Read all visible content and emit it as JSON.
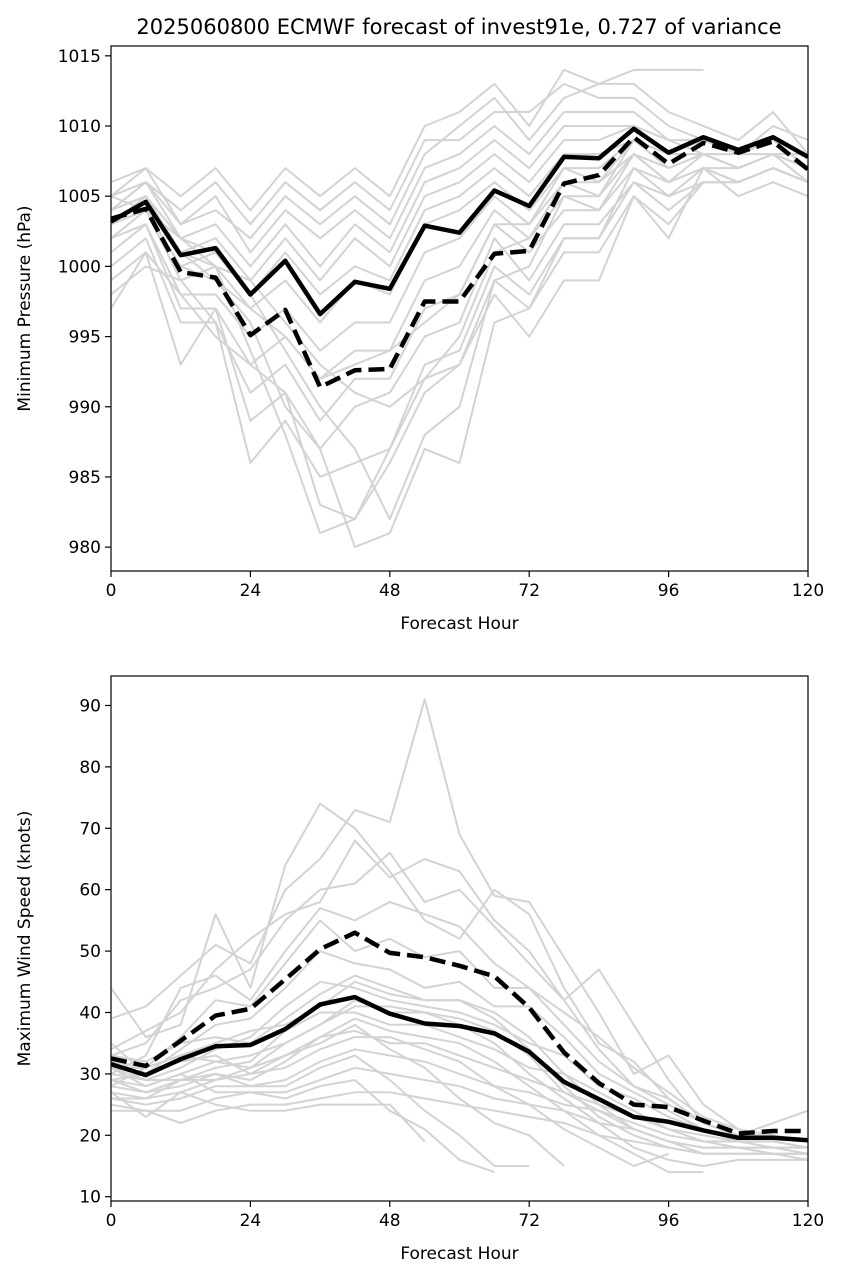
{
  "figure": {
    "title": "2025060800 ECMWF forecast of invest91e, 0.727 of variance"
  },
  "colors": {
    "ensemble": "#d3d3d3",
    "mean": "#000000",
    "background": "#ffffff"
  },
  "chart_data": [
    {
      "type": "line",
      "title": "2025060800 ECMWF forecast of invest91e, 0.727 of variance",
      "xlabel": "Forecast Hour",
      "ylabel": "Minimum Pressure (hPa)",
      "xlim": [
        0,
        120
      ],
      "ylim": [
        978.3,
        1015.7
      ],
      "xticks": [
        0,
        24,
        48,
        72,
        96,
        120
      ],
      "yticks": [
        980,
        985,
        990,
        995,
        1000,
        1005,
        1010,
        1015
      ],
      "grid": false,
      "x": [
        0,
        6,
        12,
        18,
        24,
        30,
        36,
        42,
        48,
        54,
        60,
        66,
        72,
        78,
        84,
        90,
        96,
        102,
        108,
        114,
        120
      ],
      "series": [
        {
          "style": "solid",
          "values": [
            1003.2,
            1004.6,
            1000.8,
            1001.3,
            998.0,
            1000.4,
            996.6,
            998.9,
            998.4,
            1002.9,
            1002.4,
            1005.4,
            1004.3,
            1007.8,
            1007.7,
            1009.8,
            1008.1,
            1009.2,
            1008.3,
            1009.2,
            1007.8
          ]
        },
        {
          "style": "dashed",
          "values": [
            1003.4,
            1004.1,
            999.6,
            999.2,
            995.1,
            996.9,
            991.4,
            992.6,
            992.7,
            997.5,
            997.5,
            1000.9,
            1001.1,
            1005.9,
            1006.5,
            1009.2,
            1007.3,
            1008.8,
            1008.1,
            1008.9,
            1006.9
          ]
        }
      ],
      "ensemble": [
        [
          1006,
          1007,
          1005,
          1007,
          1004,
          1007,
          1005,
          1007,
          1005,
          1010,
          1011,
          1013,
          1010,
          1014,
          1013,
          1013,
          1011,
          1010,
          1009,
          1011,
          1008
        ],
        [
          1005,
          1006,
          1004,
          1006,
          1003,
          1006,
          1004,
          1006,
          1004,
          1009,
          1009,
          1011,
          1011,
          1013,
          1012,
          1012,
          1010,
          1009,
          1008,
          1010,
          1009
        ],
        [
          1005,
          1007,
          1003,
          1004,
          1002,
          1005,
          1003,
          1005,
          1003,
          1008,
          1010,
          1012,
          1009,
          1012,
          1013,
          1014,
          1014,
          1014,
          null,
          null,
          null
        ],
        [
          1004,
          1006,
          1003,
          1005,
          1001,
          1004,
          1002,
          1004,
          1002,
          1007,
          1008,
          1010,
          1008,
          1011,
          1011,
          1011,
          1009,
          1008,
          1008,
          1009,
          1008
        ],
        [
          1004,
          1005,
          1002,
          1003,
          1000,
          1003,
          1000,
          1003,
          1001,
          1006,
          1007,
          1009,
          1007,
          1010,
          1010,
          1010,
          1009,
          1009,
          1008,
          1009,
          1007
        ],
        [
          1003,
          1005,
          1001,
          1002,
          999,
          1002,
          999,
          1002,
          1000,
          1005,
          1006,
          1008,
          1006,
          1009,
          1009,
          1010,
          1008,
          1008,
          1008,
          1008,
          1008
        ],
        [
          1003,
          1004,
          1000,
          1001,
          998,
          1001,
          998,
          1000,
          999,
          1004,
          1005,
          1007,
          1005,
          1008,
          1008,
          1009,
          1008,
          1008,
          1007,
          1008,
          1007
        ],
        [
          1002,
          1004,
          999,
          1000,
          997,
          999,
          996,
          999,
          998,
          1003,
          1004,
          1006,
          1004,
          1007,
          1007,
          1009,
          1007,
          1008,
          1007,
          1008,
          1007
        ],
        [
          1002,
          1003,
          998,
          998,
          995,
          997,
          994,
          996,
          996,
          1001,
          1002,
          1005,
          1003,
          1006,
          1006,
          1008,
          1006,
          1008,
          1007,
          1008,
          1006
        ],
        [
          1001,
          1003,
          997,
          997,
          993,
          995,
          992,
          994,
          994,
          999,
          1000,
          1004,
          1002,
          1005,
          1005,
          1008,
          1006,
          1007,
          1007,
          1008,
          1006
        ],
        [
          1000,
          1002,
          996,
          996,
          991,
          993,
          989,
          992,
          992,
          997,
          998,
          1003,
          1001,
          1004,
          1004,
          1007,
          1005,
          1007,
          1006,
          1007,
          1006
        ],
        [
          999,
          1001,
          993,
          997,
          989,
          991,
          987,
          990,
          991,
          995,
          996,
          1002,
          999,
          1003,
          1003,
          1006,
          1005,
          1006,
          1006,
          1007,
          1006
        ],
        [
          998,
          1000,
          999,
          996,
          986,
          989,
          985,
          986,
          987,
          993,
          994,
          1000,
          998,
          1002,
          1002,
          1006,
          1004,
          1006,
          1006,
          1007,
          1006
        ],
        [
          997,
          1001,
          998,
          995,
          993,
          991,
          983,
          982,
          987,
          992,
          993,
          999,
          997,
          1001,
          1001,
          1005,
          1002,
          1007,
          1005,
          1006,
          1005
        ],
        [
          1004,
          1005,
          1001,
          1000,
          994,
          988,
          981,
          982,
          986,
          991,
          993,
          998,
          995,
          999,
          999,
          1005,
          1003,
          1006,
          1006,
          1007,
          1006
        ],
        [
          1003,
          1004,
          1000,
          999,
          996,
          990,
          987,
          980,
          981,
          987,
          986,
          996,
          997,
          1002,
          1002,
          1007,
          1006,
          1007,
          1006,
          1007,
          1006
        ],
        [
          1005,
          1004,
          1002,
          1001,
          998,
          994,
          990,
          987,
          982,
          988,
          990,
          999,
          1000,
          1005,
          1004,
          1008,
          1007,
          1008,
          1007,
          1008,
          1007
        ],
        [
          1004,
          1006,
          1002,
          1000,
          999,
          996,
          993,
          991,
          990,
          992,
          995,
          1001,
          1002,
          1006,
          1005,
          1009,
          1008,
          1009,
          1008,
          1009,
          1007
        ],
        [
          1003,
          1005,
          1001,
          999,
          997,
          995,
          992,
          993,
          994,
          996,
          998,
          1003,
          1003,
          1007,
          1006,
          1009,
          1008,
          1009,
          1008,
          1009,
          1008
        ]
      ]
    },
    {
      "type": "line",
      "xlabel": "Forecast Hour",
      "ylabel": "Maximum Wind Speed (knots)",
      "xlim": [
        0,
        120
      ],
      "ylim": [
        9.3,
        94.8
      ],
      "xticks": [
        0,
        24,
        48,
        72,
        96,
        120
      ],
      "yticks": [
        10,
        20,
        30,
        40,
        50,
        60,
        70,
        80,
        90
      ],
      "grid": false,
      "x": [
        0,
        6,
        12,
        18,
        24,
        30,
        36,
        42,
        48,
        54,
        60,
        66,
        72,
        78,
        84,
        90,
        96,
        102,
        108,
        114,
        120
      ],
      "series": [
        {
          "style": "solid",
          "values": [
            31.6,
            29.8,
            32.4,
            34.5,
            34.7,
            37.3,
            41.3,
            42.5,
            39.8,
            38.2,
            37.8,
            36.6,
            33.6,
            28.7,
            25.9,
            23.0,
            22.2,
            20.8,
            19.6,
            19.6,
            19.2
          ]
        },
        {
          "style": "dashed",
          "values": [
            32.5,
            31.3,
            35.4,
            39.5,
            40.6,
            45.4,
            50.3,
            53.0,
            49.7,
            49.0,
            47.6,
            45.9,
            40.8,
            33.5,
            28.5,
            25.0,
            24.6,
            22.4,
            20.3,
            20.7,
            20.7
          ]
        }
      ],
      "ensemble": [
        [
          44,
          36,
          38,
          56,
          44,
          64,
          74,
          70,
          63,
          55,
          52,
          60,
          56,
          44,
          35,
          32,
          26,
          22,
          20,
          22,
          24
        ],
        [
          39,
          41,
          46,
          51,
          48,
          60,
          65,
          73,
          71,
          91,
          69,
          59,
          58,
          49,
          40,
          30,
          33,
          25,
          21,
          20,
          19
        ],
        [
          34,
          37,
          40,
          47,
          52,
          56,
          58,
          68,
          62,
          65,
          63,
          55,
          50,
          42,
          34,
          28,
          26,
          22,
          20,
          20,
          19
        ],
        [
          33,
          35,
          42,
          44,
          47,
          55,
          60,
          61,
          66,
          58,
          60,
          54,
          48,
          42,
          47,
          38,
          29,
          22,
          20,
          20,
          19
        ],
        [
          30,
          33,
          44,
          46,
          42,
          50,
          57,
          55,
          58,
          56,
          54,
          48,
          44,
          40,
          36,
          31,
          27,
          23,
          21,
          20,
          19
        ],
        [
          28,
          31,
          36,
          42,
          41,
          48,
          55,
          50,
          52,
          49,
          50,
          44,
          44,
          38,
          32,
          28,
          25,
          22,
          20,
          20,
          19
        ],
        [
          35,
          30,
          34,
          38,
          39,
          44,
          50,
          48,
          47,
          44,
          45,
          41,
          41,
          36,
          30,
          27,
          24,
          21,
          20,
          20,
          19
        ],
        [
          31,
          29,
          31,
          34,
          36,
          41,
          45,
          44,
          42,
          41,
          40,
          38,
          35,
          33,
          28,
          26,
          23,
          21,
          19,
          19,
          18
        ],
        [
          29,
          27,
          29,
          31,
          32,
          37,
          40,
          40,
          38,
          38,
          36,
          34,
          31,
          30,
          27,
          24,
          21,
          20,
          19,
          19,
          18
        ],
        [
          27,
          26,
          27,
          29,
          30,
          33,
          36,
          37,
          35,
          35,
          33,
          31,
          29,
          27,
          25,
          23,
          21,
          19,
          19,
          18,
          18
        ],
        [
          26,
          25,
          26,
          28,
          28,
          29,
          32,
          34,
          33,
          32,
          30,
          28,
          27,
          25,
          24,
          22,
          20,
          19,
          18,
          18,
          17
        ],
        [
          25,
          24,
          24,
          26,
          27,
          27,
          29,
          31,
          30,
          29,
          28,
          26,
          25,
          24,
          22,
          21,
          19,
          18,
          18,
          17,
          17
        ],
        [
          24,
          24,
          22,
          24,
          25,
          25,
          26,
          27,
          27,
          26,
          25,
          24,
          23,
          22,
          20,
          19,
          18,
          17,
          17,
          17,
          16
        ],
        [
          27,
          23,
          27,
          25,
          24,
          24,
          25,
          25,
          25,
          19,
          null,
          null,
          null,
          null,
          null,
          null,
          null,
          null,
          null,
          null,
          null
        ],
        [
          31,
          28,
          30,
          27,
          27,
          26,
          28,
          29,
          24,
          21,
          16,
          14,
          null,
          null,
          null,
          null,
          null,
          null,
          null,
          null,
          null
        ],
        [
          30,
          29,
          29,
          30,
          28,
          28,
          31,
          33,
          29,
          24,
          20,
          15,
          15,
          null,
          null,
          null,
          null,
          null,
          null,
          null,
          null
        ],
        [
          32,
          31,
          33,
          32,
          31,
          33,
          35,
          38,
          34,
          31,
          26,
          22,
          20,
          15,
          null,
          null,
          null,
          null,
          null,
          null,
          null
        ],
        [
          29,
          30,
          32,
          33,
          30,
          31,
          34,
          36,
          36,
          34,
          32,
          28,
          25,
          21,
          18,
          15,
          17,
          null,
          null,
          null,
          null
        ],
        [
          28,
          27,
          28,
          30,
          29,
          32,
          36,
          39,
          37,
          36,
          35,
          32,
          28,
          24,
          20,
          17,
          14,
          14,
          null,
          null,
          null
        ],
        [
          26,
          26,
          29,
          29,
          31,
          35,
          38,
          42,
          40,
          40,
          38,
          35,
          30,
          26,
          22,
          18,
          16,
          15,
          16,
          16,
          16
        ],
        [
          33,
          32,
          35,
          36,
          35,
          39,
          43,
          46,
          44,
          42,
          42,
          39,
          34,
          28,
          23,
          20,
          18,
          17,
          17,
          17,
          17
        ],
        [
          29,
          28,
          30,
          32,
          33,
          35,
          38,
          41,
          41,
          40,
          39,
          37,
          33,
          27,
          24,
          21,
          19,
          17,
          17,
          17,
          17
        ],
        [
          31,
          31,
          33,
          35,
          37,
          38,
          41,
          45,
          43,
          42,
          42,
          40,
          36,
          30,
          25,
          21,
          19,
          18,
          18,
          18,
          18
        ]
      ]
    }
  ]
}
